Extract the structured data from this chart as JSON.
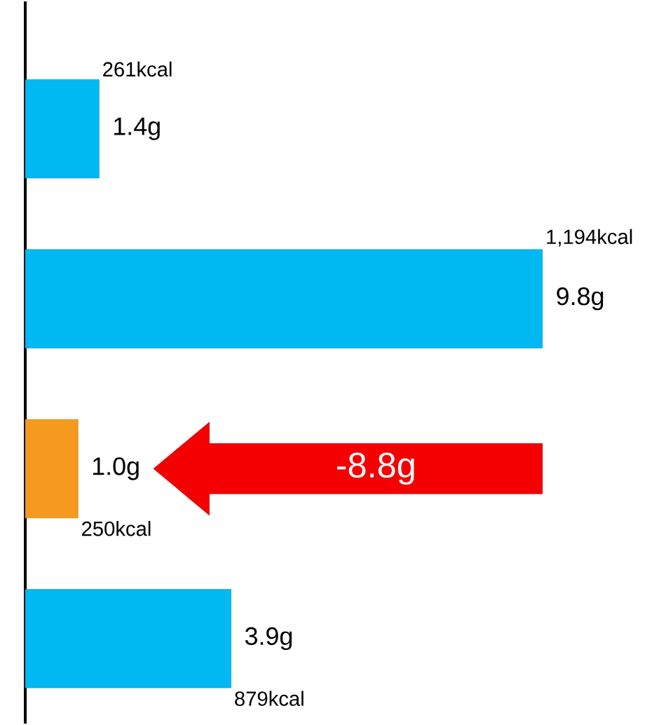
{
  "chart_data": {
    "type": "bar",
    "orientation": "horizontal",
    "categories": [
      null,
      null,
      null,
      null
    ],
    "values": [
      1.4,
      9.8,
      1.0,
      3.9
    ],
    "colors": [
      "#00b8f2",
      "#00b8f2",
      "#f39a1f",
      "#00b8f2"
    ],
    "value_labels": [
      "1.4g",
      "9.8g",
      "1.0g",
      "3.9g"
    ],
    "annotations": [
      "261kcal",
      "1,194kcal",
      "250kcal",
      "879kcal",
      "-8.8g"
    ]
  }
}
